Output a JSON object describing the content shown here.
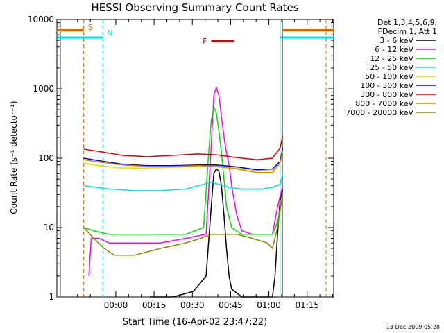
{
  "chart_data": {
    "type": "line",
    "title": "HESSI Observing Summary Count Rates",
    "xlabel": "Start Time (16-Apr-02 23:47:22)",
    "ylabel": "Count Rate (s⁻¹ detector⁻¹)",
    "y_scale": "log",
    "ylim": [
      1,
      10000
    ],
    "xlim": [
      -10.5,
      98
    ],
    "x_units": "minutes after 16-Apr-02 23:47:22",
    "x_ticks": [
      {
        "x": 12.6,
        "label": "00:00"
      },
      {
        "x": 27.6,
        "label": "00:15"
      },
      {
        "x": 42.6,
        "label": "00:30"
      },
      {
        "x": 57.6,
        "label": "00:45"
      },
      {
        "x": 72.6,
        "label": "01:00"
      },
      {
        "x": 87.6,
        "label": "01:15"
      }
    ],
    "y_ticks": [
      {
        "y": 1,
        "label": "1"
      },
      {
        "y": 10,
        "label": "10"
      },
      {
        "y": 100,
        "label": "100"
      },
      {
        "y": 1000,
        "label": "1000"
      },
      {
        "y": 10000,
        "label": "10000"
      }
    ],
    "legend_header": [
      "Det 1,3,4,5,6,9,",
      "FDecim 1, Att 1"
    ],
    "legend_position": "right, outside plot",
    "series": [
      {
        "name": "3 - 6 keV",
        "color": "#000000",
        "points": [
          [
            26,
            1
          ],
          [
            35,
            1
          ],
          [
            43,
            1.2
          ],
          [
            48,
            2
          ],
          [
            50,
            20
          ],
          [
            51,
            60
          ],
          [
            52,
            70
          ],
          [
            53,
            65
          ],
          [
            54,
            40
          ],
          [
            55,
            15
          ],
          [
            56,
            5
          ],
          [
            57,
            2
          ],
          [
            58,
            1.3
          ],
          [
            62,
            1
          ],
          [
            70,
            1
          ],
          [
            74,
            1
          ],
          [
            75,
            2
          ],
          [
            76,
            8
          ],
          [
            77,
            25
          ],
          [
            78,
            35
          ]
        ]
      },
      {
        "name": "6 - 12 keV",
        "color": "#ff00ff",
        "points": [
          [
            2,
            2
          ],
          [
            3,
            7
          ],
          [
            6,
            7
          ],
          [
            10,
            6
          ],
          [
            20,
            6
          ],
          [
            30,
            6
          ],
          [
            40,
            7
          ],
          [
            48,
            8
          ],
          [
            50,
            150
          ],
          [
            51,
            800
          ],
          [
            52,
            1050
          ],
          [
            53,
            800
          ],
          [
            54,
            400
          ],
          [
            55,
            200
          ],
          [
            56,
            120
          ],
          [
            57,
            80
          ],
          [
            58,
            40
          ],
          [
            60,
            15
          ],
          [
            62,
            9
          ],
          [
            66,
            8
          ],
          [
            70,
            8
          ],
          [
            74,
            8
          ],
          [
            76,
            20
          ],
          [
            78,
            40
          ]
        ]
      },
      {
        "name": "12 - 25 keV",
        "color": "#00dd00",
        "points": [
          [
            0,
            10
          ],
          [
            4,
            9
          ],
          [
            10,
            8
          ],
          [
            20,
            8
          ],
          [
            30,
            8
          ],
          [
            40,
            8
          ],
          [
            47,
            10
          ],
          [
            49,
            120
          ],
          [
            50,
            350
          ],
          [
            51,
            550
          ],
          [
            52,
            450
          ],
          [
            53,
            250
          ],
          [
            54,
            120
          ],
          [
            55,
            50
          ],
          [
            56,
            20
          ],
          [
            58,
            10
          ],
          [
            62,
            8
          ],
          [
            70,
            8
          ],
          [
            74,
            8
          ],
          [
            76,
            12
          ],
          [
            78,
            30
          ]
        ]
      },
      {
        "name": "25 - 50 keV",
        "color": "#00e0e0",
        "points": [
          [
            0,
            40
          ],
          [
            5,
            38
          ],
          [
            10,
            36
          ],
          [
            20,
            34
          ],
          [
            30,
            34
          ],
          [
            40,
            36
          ],
          [
            47,
            42
          ],
          [
            50,
            45
          ],
          [
            53,
            42
          ],
          [
            57,
            38
          ],
          [
            62,
            36
          ],
          [
            70,
            36
          ],
          [
            74,
            38
          ],
          [
            77,
            42
          ],
          [
            78,
            60
          ]
        ]
      },
      {
        "name": "50 - 100 keV",
        "color": "#dddd00",
        "points": [
          [
            0,
            85
          ],
          [
            6,
            78
          ],
          [
            15,
            72
          ],
          [
            25,
            72
          ],
          [
            35,
            74
          ],
          [
            45,
            76
          ],
          [
            52,
            78
          ],
          [
            60,
            72
          ],
          [
            68,
            66
          ],
          [
            74,
            66
          ],
          [
            77,
            85
          ],
          [
            78,
            130
          ]
        ]
      },
      {
        "name": "100 - 300 keV",
        "color": "#0000cc",
        "points": [
          [
            0,
            100
          ],
          [
            6,
            92
          ],
          [
            15,
            82
          ],
          [
            25,
            78
          ],
          [
            35,
            78
          ],
          [
            45,
            80
          ],
          [
            52,
            80
          ],
          [
            60,
            75
          ],
          [
            68,
            68
          ],
          [
            74,
            70
          ],
          [
            77,
            90
          ],
          [
            78,
            140
          ]
        ]
      },
      {
        "name": "300 - 800 keV",
        "color": "#dd0000",
        "points": [
          [
            0,
            135
          ],
          [
            6,
            125
          ],
          [
            15,
            110
          ],
          [
            25,
            105
          ],
          [
            35,
            110
          ],
          [
            45,
            115
          ],
          [
            52,
            112
          ],
          [
            60,
            102
          ],
          [
            68,
            95
          ],
          [
            74,
            100
          ],
          [
            77,
            140
          ],
          [
            78,
            210
          ]
        ]
      },
      {
        "name": "800 - 7000 keV",
        "color": "#dd8800",
        "points": [
          [
            0,
            95
          ],
          [
            6,
            88
          ],
          [
            15,
            80
          ],
          [
            25,
            76
          ],
          [
            35,
            76
          ],
          [
            45,
            78
          ],
          [
            52,
            76
          ],
          [
            60,
            70
          ],
          [
            68,
            62
          ],
          [
            74,
            62
          ],
          [
            77,
            85
          ],
          [
            78,
            125
          ]
        ]
      },
      {
        "name": "7000 - 20000 keV",
        "color": "#888800",
        "points": [
          [
            0,
            10
          ],
          [
            4,
            7
          ],
          [
            8,
            5
          ],
          [
            12,
            4
          ],
          [
            20,
            4
          ],
          [
            30,
            5
          ],
          [
            40,
            6
          ],
          [
            46,
            7
          ],
          [
            50,
            8
          ],
          [
            54,
            8
          ],
          [
            60,
            8
          ],
          [
            66,
            7
          ],
          [
            72,
            6
          ],
          [
            74,
            5
          ],
          [
            76,
            10
          ],
          [
            78,
            30
          ]
        ]
      }
    ],
    "annotations": [
      {
        "label": "S",
        "color": "#dd6600",
        "x": 0,
        "style": "dashed vertical"
      },
      {
        "label": "N",
        "color": "#00e0e0",
        "x": 7.5,
        "style": "dashed vertical"
      },
      {
        "label": "F",
        "color": "#dd0000",
        "x_range": [
          50,
          59
        ]
      }
    ],
    "vertical_markers": [
      {
        "x": -9,
        "color": "#00e0e0",
        "style": "solid"
      },
      {
        "x": 77,
        "color": "#00e0e0",
        "style": "solid"
      },
      {
        "x": 78,
        "color": "#dd6600",
        "style": "solid"
      },
      {
        "x": 95,
        "color": "#dd6600",
        "style": "dashed"
      }
    ],
    "level_bars": [
      {
        "color": "#dd6600",
        "y": 7000,
        "x_ranges": [
          [
            -10.5,
            0
          ],
          [
            78,
            98
          ]
        ]
      },
      {
        "color": "#00e0e0",
        "y": 5500,
        "x_ranges": [
          [
            -10.5,
            7.5
          ],
          [
            77,
            98
          ]
        ]
      }
    ]
  },
  "footer_timestamp": "13-Dec-2009 05:28",
  "colors": {
    "background": "#ffffff",
    "axis": "#000000"
  }
}
